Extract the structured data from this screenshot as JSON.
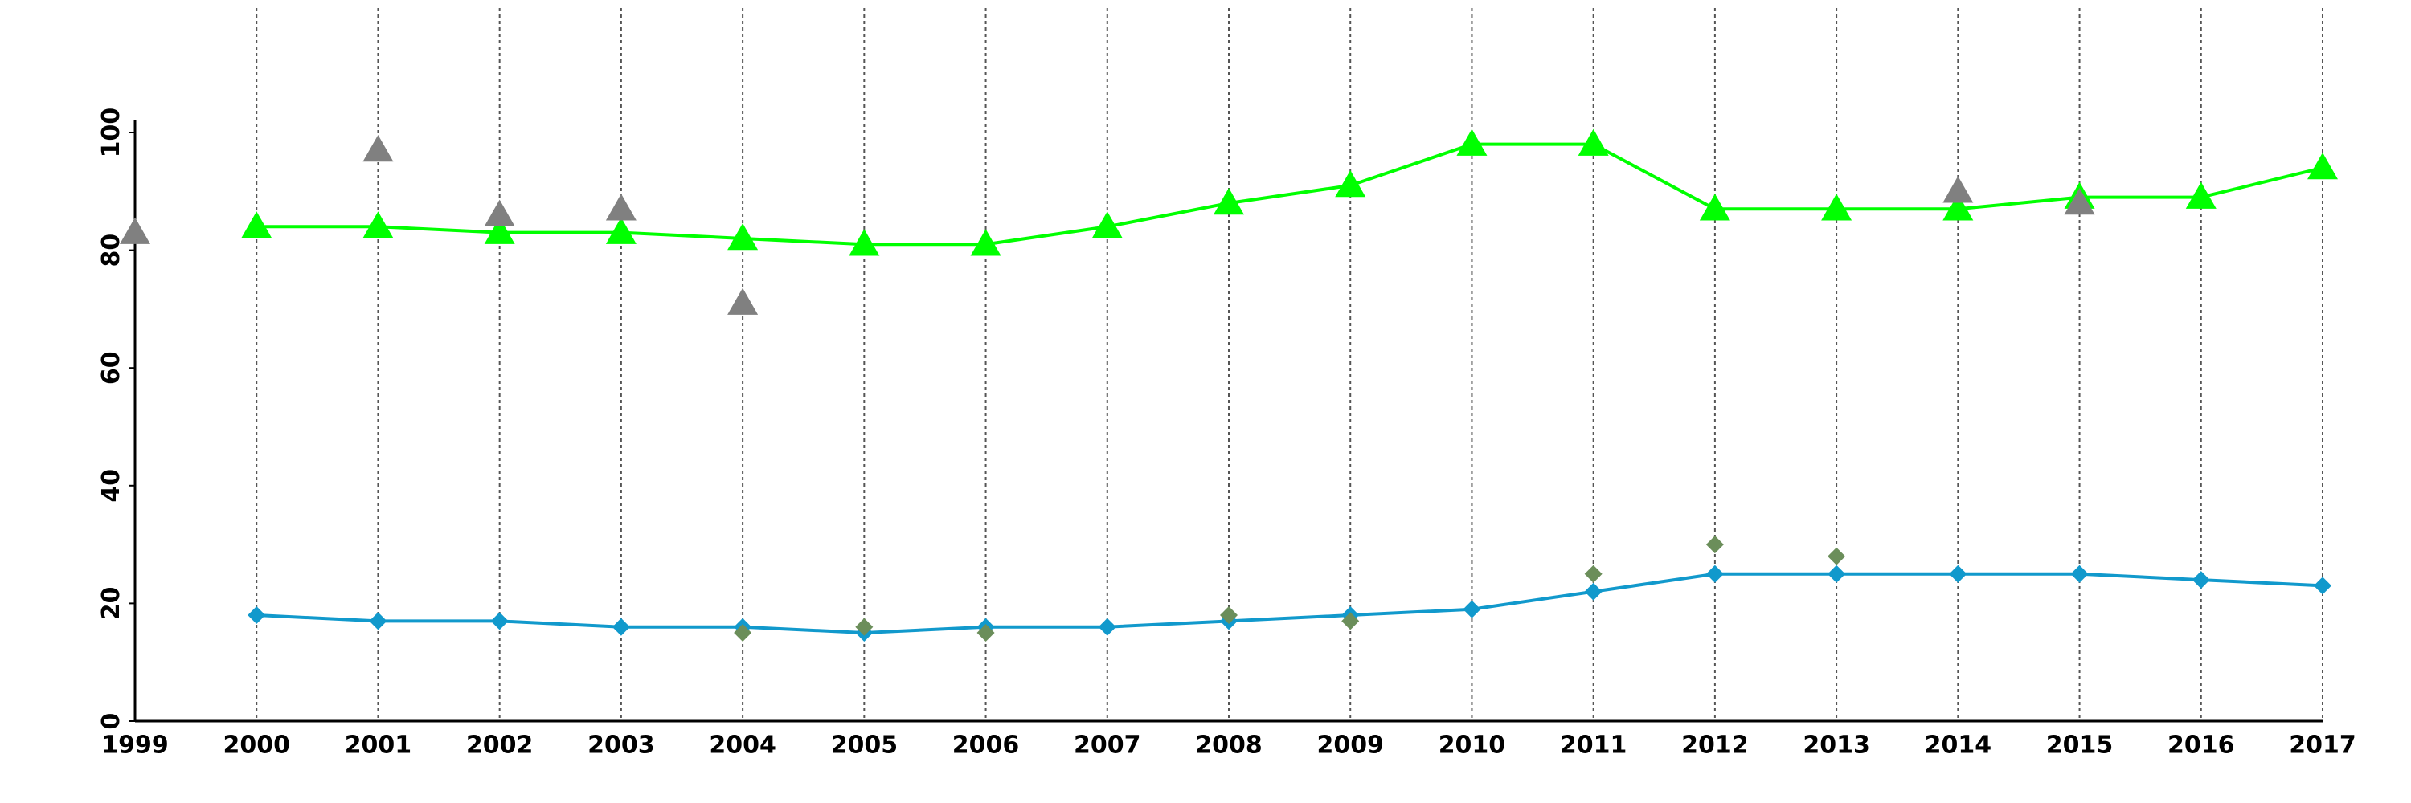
{
  "chart_data": {
    "type": "line",
    "title": "",
    "xlabel": "",
    "ylabel": "",
    "x": [
      1999,
      2000,
      2001,
      2002,
      2003,
      2004,
      2005,
      2006,
      2007,
      2008,
      2009,
      2010,
      2011,
      2012,
      2013,
      2014,
      2015,
      2016,
      2017
    ],
    "x_tick_labels": [
      "1999",
      "2000",
      "2001",
      "2002",
      "2003",
      "2004",
      "2005",
      "2006",
      "2007",
      "2008",
      "2009",
      "2010",
      "2011",
      "2012",
      "2013",
      "2014",
      "2015",
      "2016",
      "2017"
    ],
    "xlim": [
      1999,
      2017
    ],
    "y_ticks": [
      0,
      20,
      40,
      60,
      80,
      100
    ],
    "y_tick_labels": [
      "0",
      "20",
      "40",
      "60",
      "80",
      "100"
    ],
    "ylim": [
      0,
      100
    ],
    "grid": "vertical dotted lines at each year",
    "legend": "none",
    "series": [
      {
        "marker": "triangle",
        "color": "#00ff00",
        "line": true,
        "x": [
          2000,
          2001,
          2002,
          2003,
          2004,
          2005,
          2006,
          2007,
          2008,
          2009,
          2010,
          2011,
          2012,
          2013,
          2014,
          2015,
          2016,
          2017
        ],
        "values": [
          84,
          84,
          83,
          83,
          82,
          81,
          81,
          84,
          88,
          91,
          98,
          98,
          87,
          87,
          87,
          89,
          89,
          94
        ]
      },
      {
        "marker": "triangle",
        "color": "#808080",
        "line": false,
        "x": [
          1999,
          2001,
          2002,
          2003,
          2004,
          2014,
          2015
        ],
        "values": [
          83,
          97,
          86,
          87,
          71,
          90,
          88
        ]
      },
      {
        "marker": "diamond",
        "color": "#1199cc",
        "line": true,
        "x": [
          2000,
          2001,
          2002,
          2003,
          2004,
          2005,
          2006,
          2007,
          2008,
          2009,
          2010,
          2011,
          2012,
          2013,
          2014,
          2015,
          2016,
          2017
        ],
        "values": [
          18,
          17,
          17,
          16,
          16,
          15,
          16,
          16,
          17,
          18,
          19,
          22,
          25,
          25,
          25,
          25,
          24,
          23
        ]
      },
      {
        "marker": "diamond",
        "color": "#6b8e5a",
        "line": false,
        "x": [
          2004,
          2005,
          2006,
          2008,
          2009,
          2011,
          2012,
          2013
        ],
        "values": [
          15,
          16,
          15,
          18,
          17,
          25,
          30,
          28
        ]
      }
    ]
  }
}
